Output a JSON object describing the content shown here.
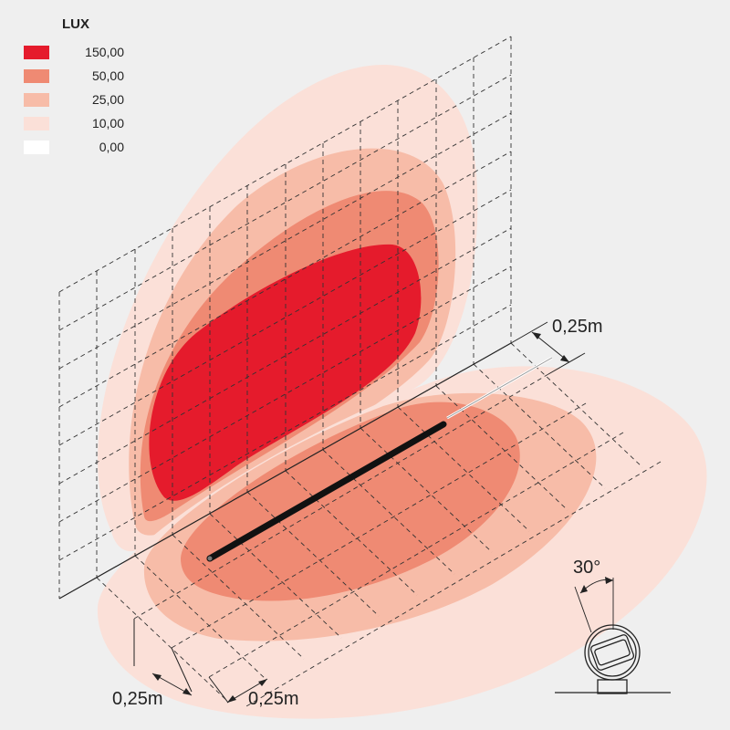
{
  "legend": {
    "title": "LUX",
    "items": [
      {
        "value": "150,00",
        "color": "#e51b2c"
      },
      {
        "value": "50,00",
        "color": "#ef8a73"
      },
      {
        "value": "25,00",
        "color": "#f7bca8"
      },
      {
        "value": "10,00",
        "color": "#fbe0d8"
      },
      {
        "value": "0,00",
        "color": "#ffffff"
      }
    ]
  },
  "dimensions": {
    "wall_spacing": "0,25m",
    "floor_spacing_left": "0,25m",
    "floor_spacing_right": "0,25m",
    "tilt_angle": "30°"
  }
}
